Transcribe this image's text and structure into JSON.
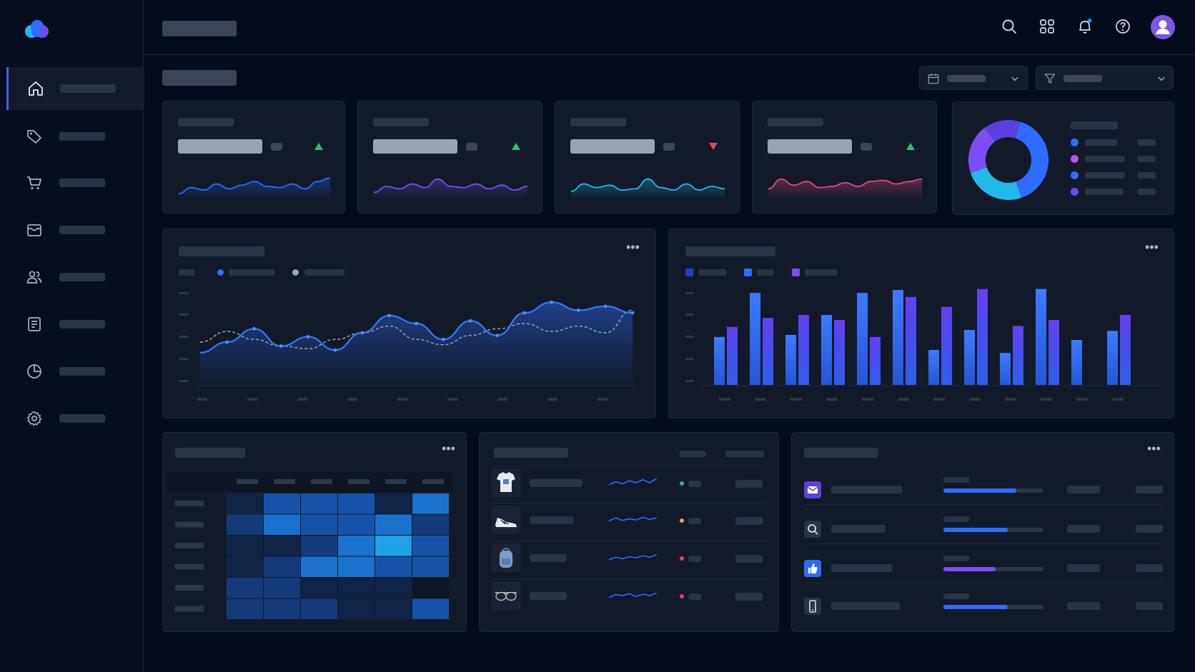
{
  "colors": {
    "background": "#040b1a",
    "card": "#121a2a",
    "accent_blue": "#2f6bff",
    "accent_purple": "#7b4df2",
    "accent_cyan": "#22b8e8",
    "accent_pink": "#e4487a",
    "trend_up": "#27c46a",
    "trend_down": "#e8465a"
  },
  "sidebar": {
    "logo_icon": "cloud-logo-icon",
    "items": [
      {
        "icon": "home-icon",
        "active": true
      },
      {
        "icon": "tag-icon",
        "active": false
      },
      {
        "icon": "cart-icon",
        "active": false
      },
      {
        "icon": "inbox-icon",
        "active": false
      },
      {
        "icon": "users-icon",
        "active": false
      },
      {
        "icon": "document-icon",
        "active": false
      },
      {
        "icon": "pie-chart-icon",
        "active": false
      },
      {
        "icon": "gear-icon",
        "active": false
      }
    ]
  },
  "header": {
    "icons": [
      "search-icon",
      "apps-grid-icon",
      "bell-icon",
      "help-icon",
      "avatar-icon"
    ],
    "notification_badge": true
  },
  "filters": {
    "date_icon": "calendar-icon",
    "filter_icon": "filter-icon"
  },
  "kpis": [
    {
      "color": "#2f6bff",
      "trend": "up"
    },
    {
      "color": "#7b4df2",
      "trend": "up"
    },
    {
      "color": "#22b8e8",
      "trend": "down"
    },
    {
      "color": "#e4487a",
      "trend": "up"
    }
  ],
  "chart_data": [
    {
      "type": "pie",
      "values": [
        40,
        25,
        20,
        15
      ],
      "colors": [
        "#2f6bff",
        "#22b8e8",
        "#7b4df2",
        "#5b3fe0"
      ]
    },
    {
      "type": "area",
      "series": [
        {
          "values": [
            20,
            28,
            38,
            25,
            32,
            22,
            35,
            48,
            42,
            30,
            44,
            33,
            50,
            58,
            52,
            55,
            50
          ]
        },
        {
          "values": [
            28,
            36,
            30,
            25,
            23,
            30,
            35,
            40,
            30,
            26,
            33,
            38,
            42,
            36,
            40,
            35,
            52
          ]
        }
      ],
      "grid": false,
      "legend": "top-left"
    },
    {
      "type": "bar",
      "series": [
        {
          "values": [
            48,
            92,
            50,
            70,
            92,
            95,
            35,
            55,
            32,
            96,
            45,
            54
          ]
        },
        {
          "values": [
            58,
            67,
            70,
            65,
            48,
            88,
            78,
            96,
            59,
            65,
            0,
            70
          ]
        }
      ],
      "legend": "top-left"
    },
    {
      "type": "heatmap",
      "values": [
        [
          1,
          3,
          3,
          3,
          1,
          4
        ],
        [
          2,
          4,
          3,
          3,
          4,
          2
        ],
        [
          1,
          1,
          2,
          4,
          5,
          3
        ],
        [
          1,
          2,
          4,
          4,
          3,
          3
        ],
        [
          2,
          2,
          1,
          1,
          1,
          0
        ],
        [
          2,
          2,
          2,
          1,
          1,
          3
        ]
      ]
    }
  ],
  "products": [
    {
      "icon": "tshirt-icon",
      "status": "#2fbf71"
    },
    {
      "icon": "sneaker-icon",
      "status": "#e8a33d"
    },
    {
      "icon": "backpack-icon",
      "status": "#e8465a"
    },
    {
      "icon": "sunglasses-icon",
      "status": "#e8465a"
    }
  ],
  "channels": [
    {
      "icon": "mail-icon",
      "progress": 0.73,
      "color": "#2f6bff"
    },
    {
      "icon": "search-icon",
      "progress": 0.64,
      "color": "#2f6bff"
    },
    {
      "icon": "thumbs-up-icon",
      "progress": 0.52,
      "color": "#7b4df2"
    },
    {
      "icon": "mobile-icon",
      "progress": 0.64,
      "color": "#2f6bff"
    }
  ]
}
